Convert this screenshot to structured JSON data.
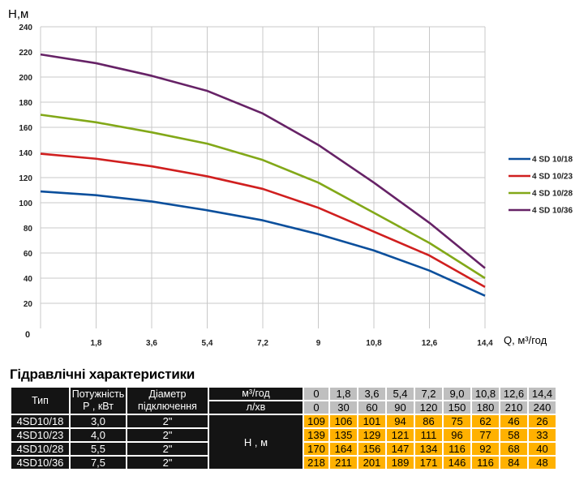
{
  "chart_data": {
    "type": "line",
    "ylabel": "H,м",
    "xlabel": "Q, м³/год",
    "x": [
      0,
      1.8,
      3.6,
      5.4,
      7.2,
      9,
      10.8,
      12.6,
      14.4
    ],
    "x_ticks": [
      "0",
      "1,8",
      "3,6",
      "5,4",
      "7,2",
      "9",
      "10,8",
      "12,6",
      "14,4"
    ],
    "y_ticks": [
      240,
      220,
      200,
      180,
      160,
      140,
      120,
      100,
      80,
      60,
      40,
      20
    ],
    "origin_label": "0",
    "xlim": [
      0,
      14.4
    ],
    "ylim": [
      0,
      240
    ],
    "grid": true,
    "legend_position": "right",
    "series": [
      {
        "name": "4 SD 10/18",
        "color": "#0b4f9c",
        "values": [
          109,
          106,
          101,
          94,
          86,
          75,
          62,
          46,
          26
        ]
      },
      {
        "name": "4 SD 10/23",
        "color": "#d01f1f",
        "values": [
          139,
          135,
          129,
          121,
          111,
          96,
          77,
          58,
          33
        ]
      },
      {
        "name": "4 SD 10/28",
        "color": "#82a818",
        "values": [
          170,
          164,
          156,
          147,
          134,
          116,
          92,
          68,
          40
        ]
      },
      {
        "name": "4 SD 10/36",
        "color": "#662266",
        "values": [
          218,
          211,
          201,
          189,
          171,
          146,
          116,
          84,
          48
        ]
      }
    ]
  },
  "table": {
    "title": "Гідравлічні характеристики",
    "headers": {
      "type": "Тип",
      "power": "Потужність Р , кВт",
      "diameter": "Діаметр підключення",
      "flow_unit_m3": "м³/год",
      "flow_unit_lmin": "л/хв",
      "head": "Н , м"
    },
    "flow_m3h": [
      "0",
      "1,8",
      "3,6",
      "5,4",
      "7,2",
      "9,0",
      "10,8",
      "12,6",
      "14,4"
    ],
    "flow_lmin": [
      "0",
      "30",
      "60",
      "90",
      "120",
      "150",
      "180",
      "210",
      "240"
    ],
    "rows": [
      {
        "type": "4SD10/18",
        "power": "3,0",
        "diameter": "2\"",
        "head": [
          "109",
          "106",
          "101",
          "94",
          "86",
          "75",
          "62",
          "46",
          "26"
        ]
      },
      {
        "type": "4SD10/23",
        "power": "4,0",
        "diameter": "2\"",
        "head": [
          "139",
          "135",
          "129",
          "121",
          "111",
          "96",
          "77",
          "58",
          "33"
        ]
      },
      {
        "type": "4SD10/28",
        "power": "5,5",
        "diameter": "2\"",
        "head": [
          "170",
          "164",
          "156",
          "147",
          "134",
          "116",
          "92",
          "68",
          "40"
        ]
      },
      {
        "type": "4SD10/36",
        "power": "7,5",
        "diameter": "2\"",
        "head": [
          "218",
          "211",
          "201",
          "189",
          "171",
          "146",
          "116",
          "84",
          "48"
        ]
      }
    ]
  }
}
